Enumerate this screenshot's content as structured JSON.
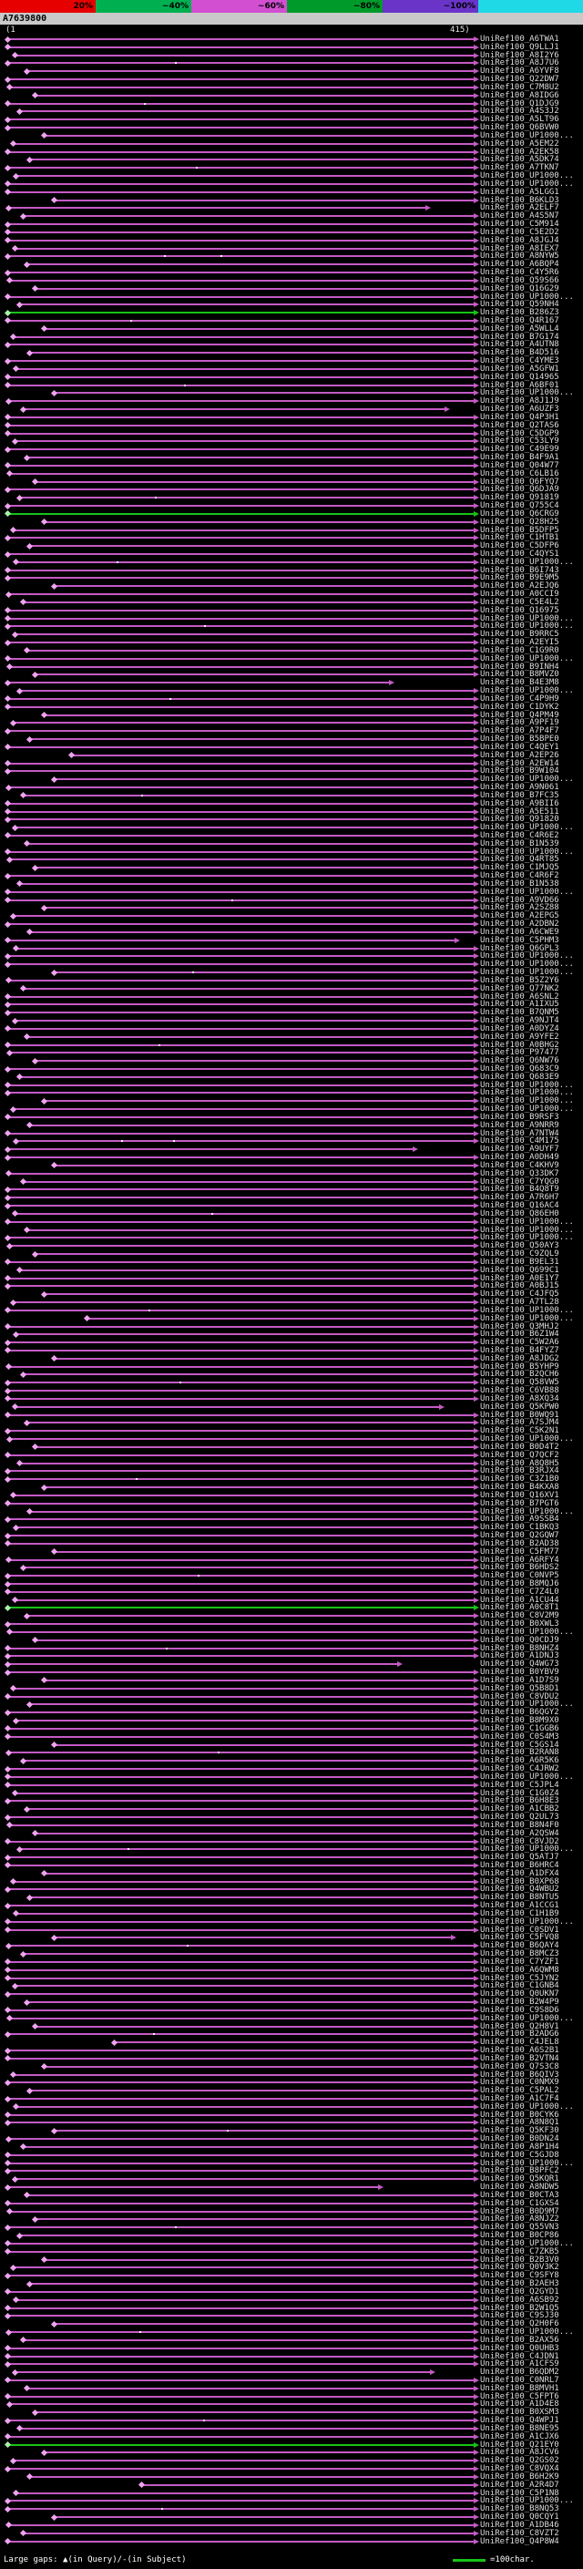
{
  "header": {
    "identity_key": {
      "labels": [
        "20%",
        "~40%",
        "~60%",
        "~80%",
        "~100%"
      ],
      "colors": [
        "#e60000",
        "#00b050",
        "#d24fd2",
        "#009a2a",
        "#6a34c9"
      ],
      "tip_color": "#1fd9e6"
    },
    "query_name": "A7639800",
    "ruler_start": "(1",
    "ruler_end": "415)"
  },
  "footer": {
    "gaps_label": "Large gaps: ▲(in Query)/-(in Subject)",
    "scale_label": "=100char.",
    "scale_color": "#17c417"
  },
  "colors": {
    "hit": "#c55ac5",
    "hit_bright": "#f0a2f0",
    "strong": "#17c417",
    "strong_bright": "#a6f2a6",
    "label_text": "#dcdcdc"
  },
  "chart_data": {
    "type": "bar",
    "orientation": "horizontal",
    "query": {
      "name": "A7639800",
      "length": 415,
      "start": 1
    },
    "label_prefix": "UniRef100_",
    "legend": {
      "strong_hit_color_meaning": "higher identity",
      "scale": "=100char."
    },
    "rows": [
      [
        "A6TWA1"
      ],
      [
        "Q9LLJ1"
      ],
      [
        "A8I2Y6",
        8
      ],
      [
        "A8J7U6",
        1,
        415,
        0,
        [
          150
        ]
      ],
      [
        "A6YVF8",
        18
      ],
      [
        "Q22DW7"
      ],
      [
        "C7M8U2",
        3
      ],
      [
        "A8IDG6",
        26
      ],
      [
        "Q1DJG9",
        1,
        415,
        0,
        [
          122
        ]
      ],
      [
        "A4S3J2",
        12
      ],
      [
        "A5LT96"
      ],
      [
        "Q6BVW0"
      ],
      [
        "UP1000...",
        34
      ],
      [
        "A5EM22",
        6
      ],
      [
        "A2EK58"
      ],
      [
        "A5DK74",
        21
      ],
      [
        "A7TKN7",
        1,
        415,
        0,
        [
          168
        ]
      ],
      [
        "UP1000...",
        9
      ],
      [
        "UP1000..."
      ],
      [
        "A5LGG1"
      ],
      [
        "B6KLD3",
        43
      ],
      [
        "A2ELF7",
        2,
        372
      ],
      [
        "A4S5N7",
        15
      ],
      [
        "C5M914"
      ],
      [
        "C5E2D2"
      ],
      [
        "A8JGJ4"
      ],
      [
        "A8IEX7",
        8
      ],
      [
        "A8NYW5",
        1,
        415,
        0,
        [
          140,
          190
        ]
      ],
      [
        "A6BQP4",
        18
      ],
      [
        "C4Y5R6"
      ],
      [
        "Q59S66",
        3
      ],
      [
        "Q16G29",
        26
      ],
      [
        "UP1000..."
      ],
      [
        "Q59NH4",
        12
      ],
      [
        "B286Z3",
        1,
        415,
        1
      ],
      [
        "Q4R167",
        1,
        415,
        0,
        [
          110
        ]
      ],
      [
        "A5WLL4",
        34
      ],
      [
        "B7G174",
        6
      ],
      [
        "A4UTN8"
      ],
      [
        "B4D516",
        21
      ],
      [
        "C4YME3"
      ],
      [
        "A5GFW1",
        9
      ],
      [
        "Q14965"
      ],
      [
        "A6BF01",
        1,
        415,
        0,
        [
          158
        ]
      ],
      [
        "UP1000...",
        43
      ],
      [
        "A8J1J9",
        2
      ],
      [
        "A6UZF3",
        15,
        389
      ],
      [
        "Q4P3H1"
      ],
      [
        "Q2TAS6"
      ],
      [
        "C5DGP9"
      ],
      [
        "C53LY9",
        8
      ],
      [
        "C49E99"
      ],
      [
        "B4F9A1",
        18
      ],
      [
        "Q04W77"
      ],
      [
        "C6LB16",
        3
      ],
      [
        "Q6FYQ7",
        26
      ],
      [
        "Q6DJA9"
      ],
      [
        "Q91819",
        12,
        415,
        0,
        [
          132
        ]
      ],
      [
        "Q755C4"
      ],
      [
        "Q6CRG9",
        1,
        415,
        1
      ],
      [
        "Q28H25",
        34
      ],
      [
        "B5DFP5",
        6
      ],
      [
        "C1HTB1"
      ],
      [
        "C5DFP6",
        21
      ],
      [
        "C4QYS1"
      ],
      [
        "UP1000...",
        9,
        415,
        0,
        [
          98
        ]
      ],
      [
        "B6I743"
      ],
      [
        "B9E9M5"
      ],
      [
        "A2EJQ6",
        43
      ],
      [
        "A0CCI9",
        2
      ],
      [
        "C5E4L2",
        15
      ],
      [
        "Q16975"
      ],
      [
        "UP1000..."
      ],
      [
        "UP1000...",
        1,
        415,
        0,
        [
          176
        ]
      ],
      [
        "B9RRC5",
        8
      ],
      [
        "A2EYI5"
      ],
      [
        "C1G9R0",
        18
      ],
      [
        "UP1000..."
      ],
      [
        "B9INH4",
        3
      ],
      [
        "B8MVZ0",
        26
      ],
      [
        "B4E3M8",
        1,
        340
      ],
      [
        "UP1000...",
        12
      ],
      [
        "C4P9H9",
        1,
        415,
        0,
        [
          145
        ]
      ],
      [
        "C1DYK2"
      ],
      [
        "Q4PM49",
        34
      ],
      [
        "A9PF19",
        6
      ],
      [
        "A7P4F7"
      ],
      [
        "B5BPE0",
        21
      ],
      [
        "C4QEY1"
      ],
      [
        "A2EP26",
        58
      ],
      [
        "A2EW14"
      ],
      [
        "B9W104"
      ],
      [
        "UP1000...",
        43
      ],
      [
        "A9N061",
        2
      ],
      [
        "B7FC35",
        15,
        415,
        0,
        [
          120
        ]
      ],
      [
        "A9BII6"
      ],
      [
        "A5E511"
      ],
      [
        "Q91820"
      ],
      [
        "UP1000...",
        8
      ],
      [
        "C4R6E2"
      ],
      [
        "B1N539",
        18
      ],
      [
        "UP1000..."
      ],
      [
        "Q4RT85",
        3
      ],
      [
        "C1MJQ5",
        26
      ],
      [
        "C4R6F2"
      ],
      [
        "B1N538",
        12
      ],
      [
        "UP1000..."
      ],
      [
        "A9VD66",
        1,
        415,
        0,
        [
          200
        ]
      ],
      [
        "A2SZ88",
        34
      ],
      [
        "A2EPG5",
        6
      ],
      [
        "A2DBN2"
      ],
      [
        "A6CWE9",
        21
      ],
      [
        "C5PHM3",
        1,
        398
      ],
      [
        "Q6GPL3",
        9
      ],
      [
        "UP1000..."
      ],
      [
        "UP1000..."
      ],
      [
        "UP1000...",
        43,
        415,
        0,
        [
          165
        ]
      ],
      [
        "B5Z2Y6",
        2
      ],
      [
        "Q77NK2",
        15
      ],
      [
        "A6SNL2"
      ],
      [
        "A1IXU5"
      ],
      [
        "B7QNM5"
      ],
      [
        "A9NJT4",
        8
      ],
      [
        "A0DYZ4"
      ],
      [
        "A9YFE2",
        18
      ],
      [
        "A0BHG2",
        1,
        415,
        0,
        [
          135
        ]
      ],
      [
        "P97477",
        3
      ],
      [
        "Q6NW76",
        26
      ],
      [
        "Q683C9"
      ],
      [
        "Q683E9",
        12
      ],
      [
        "UP1000..."
      ],
      [
        "UP1000..."
      ],
      [
        "UP1000...",
        34
      ],
      [
        "UP1000...",
        6
      ],
      [
        "B9RSF3"
      ],
      [
        "A9NRR9",
        21
      ],
      [
        "A7NTW4"
      ],
      [
        "C4M175",
        9,
        415,
        0,
        [
          102,
          148
        ]
      ],
      [
        "A9UYF7",
        1,
        361
      ],
      [
        "A0DH49"
      ],
      [
        "C4KHV9",
        43
      ],
      [
        "Q33DK7",
        2
      ],
      [
        "C7YQG0",
        15
      ],
      [
        "B4Q8T9"
      ],
      [
        "A7R6H7"
      ],
      [
        "Q16AC4"
      ],
      [
        "Q86EH0",
        8,
        415,
        0,
        [
          182
        ]
      ],
      [
        "UP1000..."
      ],
      [
        "UP1000...",
        18
      ],
      [
        "UP1000..."
      ],
      [
        "Q50AY3",
        3
      ],
      [
        "C9ZQL9",
        26
      ],
      [
        "B9EL31"
      ],
      [
        "Q699C1",
        12
      ],
      [
        "A0E1Y7"
      ],
      [
        "A0BJ15"
      ],
      [
        "C4JFQ5",
        34
      ],
      [
        "A7TL28",
        6
      ],
      [
        "UP1000...",
        1,
        415,
        0,
        [
          126
        ]
      ],
      [
        "UP1000...",
        72
      ],
      [
        "Q3MHJ2"
      ],
      [
        "B6Z1W4",
        9
      ],
      [
        "C5W2A6"
      ],
      [
        "B4FYZ7"
      ],
      [
        "A8JDG2",
        43
      ],
      [
        "B5YHP9",
        2
      ],
      [
        "B2QCH6",
        15
      ],
      [
        "Q58VW5",
        1,
        415,
        0,
        [
          154
        ]
      ],
      [
        "C6VB88"
      ],
      [
        "A8XQ34"
      ],
      [
        "Q5KPW0",
        8,
        384
      ],
      [
        "B0WQ91"
      ],
      [
        "A7SJM4",
        18
      ],
      [
        "C5K2N1"
      ],
      [
        "UP1000...",
        3
      ],
      [
        "B0D4T2",
        26
      ],
      [
        "Q7QCF2"
      ],
      [
        "A8Q8H5",
        12
      ],
      [
        "B3RJX4"
      ],
      [
        "C3Z1B0",
        1,
        415,
        0,
        [
          115
        ]
      ],
      [
        "B4KXA8",
        34
      ],
      [
        "Q16XV1",
        6
      ],
      [
        "B7PGT6"
      ],
      [
        "UP1000...",
        21
      ],
      [
        "A9SSB4"
      ],
      [
        "C1BKQ3",
        9
      ],
      [
        "Q2GQW7"
      ],
      [
        "B2AD38"
      ],
      [
        "C5FM77",
        43
      ],
      [
        "A6RFY4",
        2
      ],
      [
        "B6HDS2",
        15
      ],
      [
        "C0NVP5",
        1,
        415,
        0,
        [
          170
        ]
      ],
      [
        "B8MQJ6"
      ],
      [
        "C7Z4L0"
      ],
      [
        "A1CU44",
        8
      ],
      [
        "A0C8T1",
        1,
        415,
        1
      ],
      [
        "C8V2M9",
        18
      ],
      [
        "B0XWL3"
      ],
      [
        "UP1000...",
        3
      ],
      [
        "Q0CDJ9",
        26
      ],
      [
        "B8NHZ4",
        1,
        415,
        0,
        [
          142
        ]
      ],
      [
        "A1DNJ3"
      ],
      [
        "Q4WG73",
        1,
        347
      ],
      [
        "B0YBV9"
      ],
      [
        "A1D7S9",
        34
      ],
      [
        "Q5B8D1",
        6
      ],
      [
        "C8VDU2"
      ],
      [
        "UP1000...",
        21
      ],
      [
        "B6QGY2"
      ],
      [
        "B8M9X0",
        9
      ],
      [
        "C1GGB6"
      ],
      [
        "C0S4M3"
      ],
      [
        "C5GS14",
        43
      ],
      [
        "B2RAN8",
        2,
        415,
        0,
        [
          188
        ]
      ],
      [
        "A6R5K6",
        15
      ],
      [
        "C4JRW2"
      ],
      [
        "UP1000..."
      ],
      [
        "C5JPL4"
      ],
      [
        "C1G0Z4",
        8
      ],
      [
        "B6H8E3"
      ],
      [
        "A1CBB2",
        18
      ],
      [
        "Q2UL73"
      ],
      [
        "B8N4F0",
        3
      ],
      [
        "A2QSW4",
        26
      ],
      [
        "C8VJD2"
      ],
      [
        "UP1000...",
        12,
        415,
        0,
        [
          108
        ]
      ],
      [
        "Q5ATJ7"
      ],
      [
        "B6HRC4"
      ],
      [
        "A1DFX4",
        34
      ],
      [
        "B0XP68",
        6
      ],
      [
        "Q4WBU2"
      ],
      [
        "B8NTU5",
        21
      ],
      [
        "A1CCG1"
      ],
      [
        "C1H1B9",
        9
      ],
      [
        "UP1000..."
      ],
      [
        "C0SDV1"
      ],
      [
        "C5FVQ8",
        43,
        395
      ],
      [
        "B6QAY4",
        2,
        415,
        0,
        [
          160
        ]
      ],
      [
        "B8MCZ3",
        15
      ],
      [
        "C7YZF1"
      ],
      [
        "A6QWM8"
      ],
      [
        "C5JYN2"
      ],
      [
        "C1GNB4",
        8
      ],
      [
        "Q0UKN7"
      ],
      [
        "B2W4P9",
        18
      ],
      [
        "C9S8D6"
      ],
      [
        "UP1000...",
        3
      ],
      [
        "Q2H8V1",
        26
      ],
      [
        "B2ADG6",
        1,
        415,
        0,
        [
          130
        ]
      ],
      [
        "C4JEL8",
        96
      ],
      [
        "A6S2B1"
      ],
      [
        "B2VTN4"
      ],
      [
        "Q7S3C8",
        34
      ],
      [
        "B6QIV3",
        6
      ],
      [
        "C0NMX9"
      ],
      [
        "C5PAL2",
        21
      ],
      [
        "A1C7F4"
      ],
      [
        "UP1000...",
        9
      ],
      [
        "B0CYK6"
      ],
      [
        "A8N8Q1"
      ],
      [
        "Q5KF30",
        43,
        415,
        0,
        [
          196
        ]
      ],
      [
        "B0DN24",
        2
      ],
      [
        "A8P1H4",
        15
      ],
      [
        "C5GJD8"
      ],
      [
        "UP1000..."
      ],
      [
        "B8PFC2"
      ],
      [
        "Q5KQR1",
        8
      ],
      [
        "A8NDW5",
        1,
        330
      ],
      [
        "B0CTA3",
        18
      ],
      [
        "C1GXS4"
      ],
      [
        "B0D9M7",
        3
      ],
      [
        "A8NJZ2",
        26
      ],
      [
        "Q55VN3",
        1,
        415,
        0,
        [
          150
        ]
      ],
      [
        "B0CP86",
        12
      ],
      [
        "UP1000..."
      ],
      [
        "C7ZKB5"
      ],
      [
        "B2B3V0",
        34
      ],
      [
        "Q0V3K2",
        6
      ],
      [
        "C9SFY8"
      ],
      [
        "B2AEH3",
        21
      ],
      [
        "Q2GYD1"
      ],
      [
        "A6SB92",
        9
      ],
      [
        "B2W1Q5"
      ],
      [
        "C9SJ30"
      ],
      [
        "Q2H0F6",
        43
      ],
      [
        "UP1000...",
        2,
        415,
        0,
        [
          118
        ]
      ],
      [
        "B2AX56",
        15
      ],
      [
        "Q0UHB3"
      ],
      [
        "C4JDN1"
      ],
      [
        "A1CFS9"
      ],
      [
        "B6QDM2",
        8,
        376
      ],
      [
        "C0NRL7"
      ],
      [
        "B8MVH1",
        18
      ],
      [
        "C5FPT6"
      ],
      [
        "A1D4E8",
        3
      ],
      [
        "B0XSM3",
        26
      ],
      [
        "Q4WPJ1",
        1,
        415,
        0,
        [
          175
        ]
      ],
      [
        "B8NE95",
        12
      ],
      [
        "A1CJX6"
      ],
      [
        "Q21EY0",
        1,
        415,
        1
      ],
      [
        "A8JCV6",
        34
      ],
      [
        "Q2GS02",
        6
      ],
      [
        "C8VQX4"
      ],
      [
        "B6H2K9",
        21
      ],
      [
        "A2R4D7",
        120
      ],
      [
        "C5P1N8",
        9
      ],
      [
        "UP1000..."
      ],
      [
        "B8NQ53",
        1,
        415,
        0,
        [
          138
        ]
      ],
      [
        "Q0CQY1",
        43
      ],
      [
        "A1DB46",
        2
      ],
      [
        "C8VZT2",
        15
      ],
      [
        "Q4P8W4"
      ]
    ]
  }
}
